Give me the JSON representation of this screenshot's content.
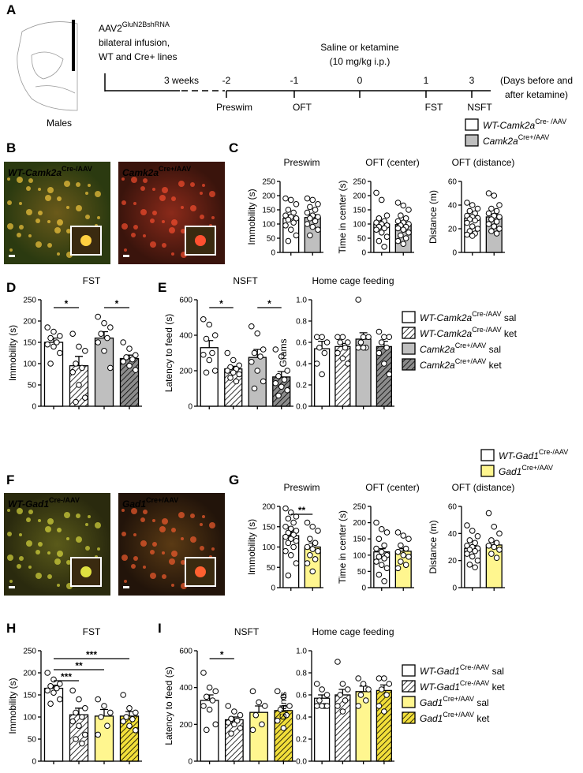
{
  "panel_labels": [
    "A",
    "B",
    "C",
    "D",
    "E",
    "F",
    "G",
    "H",
    "I"
  ],
  "timeline": {
    "vector": "AAV2",
    "vector_sup": "GluN2BshRNA",
    "lines": [
      "bilateral infusion,",
      "WT and Cre+ lines"
    ],
    "sex": "Males",
    "treatment": [
      "Saline or ketamine",
      "(10 mg/kg i.p.)"
    ],
    "gap": "3 weeks",
    "days": [
      -2,
      -1,
      0,
      1,
      3
    ],
    "tests": [
      "Preswim",
      "OFT",
      null,
      "FST",
      "NSFT"
    ],
    "units": [
      "(Days before and",
      "after ketamine)"
    ]
  },
  "images": [
    {
      "label": "WT-Camk2a",
      "sup": "Cre-/AAV"
    },
    {
      "label": "Camk2a",
      "sup": "Cre+/AAV"
    },
    {
      "label": "WT-Gad1",
      "sup": "Cre-/AAV"
    },
    {
      "label": "Gad1",
      "sup": "Cre+/AAV"
    }
  ],
  "legends": [
    {
      "entries": [
        {
          "name": "WT-Camk2a",
          "sup": "Cre- /AAV",
          "suffix": null,
          "color": "#ffffff",
          "hatch": false
        },
        {
          "name": "Camk2a",
          "sup": "Cre+/AAV",
          "suffix": null,
          "color": "#bfbfbf",
          "hatch": false
        }
      ]
    },
    {
      "entries": [
        {
          "name": "WT-Camk2a",
          "sup": "Cre-/AAV",
          "suffix": "sal",
          "color": "#ffffff",
          "hatch": false
        },
        {
          "name": "WT-Camk2a",
          "sup": "Cre-/AAV",
          "suffix": "ket",
          "color": "#ffffff",
          "hatch": true
        },
        {
          "name": "Camk2a",
          "sup": "Cre+/AAV",
          "suffix": "sal",
          "color": "#bfbfbf",
          "hatch": false
        },
        {
          "name": "Camk2a",
          "sup": "Cre+/AAV",
          "suffix": "ket",
          "color": "#8c8c8c",
          "hatch": true
        }
      ]
    },
    {
      "entries": [
        {
          "name": "WT-Gad1",
          "sup": "Cre-/AAV",
          "suffix": null,
          "color": "#ffffff",
          "hatch": false
        },
        {
          "name": "Gad1",
          "sup": "Cre+/AAV",
          "suffix": null,
          "color": "#fff68f",
          "hatch": false
        }
      ]
    },
    {
      "entries": [
        {
          "name": "WT-Gad1",
          "sup": "Cre-/AAV",
          "suffix": "sal",
          "color": "#ffffff",
          "hatch": false
        },
        {
          "name": "WT-Gad1",
          "sup": "Cre-/AAV",
          "suffix": "ket",
          "color": "#ffffff",
          "hatch": true
        },
        {
          "name": "Gad1",
          "sup": "Cre+/AAV",
          "suffix": "sal",
          "color": "#fff68f",
          "hatch": false
        },
        {
          "name": "Gad1",
          "sup": "Cre+/AAV",
          "suffix": "ket",
          "color": "#f2df3a",
          "hatch": true
        }
      ]
    }
  ],
  "chart_data": [
    {
      "type": "bar",
      "title": "Preswim",
      "ylabel": "Immobility (s)",
      "ylim": [
        0,
        250
      ],
      "yticks": [
        0,
        50,
        100,
        150,
        200,
        250
      ],
      "values": [
        120,
        123
      ],
      "errors": [
        12,
        10
      ],
      "colors": [
        "#ffffff",
        "#bfbfbf"
      ],
      "hatch": [
        false,
        false
      ],
      "points": [
        [
          190,
          185,
          170,
          150,
          140,
          130,
          125,
          120,
          115,
          105,
          95,
          80,
          60,
          40
        ],
        [
          190,
          185,
          170,
          160,
          150,
          140,
          130,
          125,
          120,
          110,
          100,
          90,
          80,
          60
        ]
      ],
      "significance": []
    },
    {
      "type": "bar",
      "title": "OFT (center)",
      "ylabel": "Time in center (s)",
      "ylim": [
        0,
        250
      ],
      "yticks": [
        0,
        50,
        100,
        150,
        200,
        250
      ],
      "values": [
        100,
        98
      ],
      "errors": [
        12,
        8
      ],
      "colors": [
        "#ffffff",
        "#bfbfbf"
      ],
      "hatch": [
        false,
        false
      ],
      "points": [
        [
          210,
          185,
          130,
          120,
          110,
          105,
          100,
          95,
          90,
          85,
          80,
          70,
          55,
          40,
          20
        ],
        [
          175,
          165,
          150,
          130,
          120,
          110,
          105,
          100,
          95,
          90,
          85,
          80,
          70,
          60,
          50,
          40,
          30
        ]
      ],
      "significance": []
    },
    {
      "type": "bar",
      "title": "OFT (distance)",
      "ylabel": "Distance (m)",
      "ylim": [
        0,
        60
      ],
      "yticks": [
        0,
        20,
        40,
        60
      ],
      "values": [
        29,
        30
      ],
      "errors": [
        2.5,
        2.5
      ],
      "colors": [
        "#ffffff",
        "#bfbfbf"
      ],
      "hatch": [
        false,
        false
      ],
      "points": [
        [
          42,
          40,
          37,
          35,
          33,
          31,
          30,
          29,
          28,
          27,
          25,
          22,
          20,
          18,
          16,
          15,
          14
        ],
        [
          50,
          48,
          40,
          37,
          35,
          33,
          31,
          30,
          28,
          26,
          24,
          22,
          20,
          18,
          16
        ]
      ],
      "significance": []
    },
    {
      "type": "bar",
      "title": "FST",
      "ylabel": "Immobility (s)",
      "ylim": [
        0,
        250
      ],
      "yticks": [
        0,
        50,
        100,
        150,
        200,
        250
      ],
      "values": [
        150,
        95,
        160,
        112
      ],
      "errors": [
        10,
        22,
        15,
        8
      ],
      "colors": [
        "#ffffff",
        "#ffffff",
        "#bfbfbf",
        "#8c8c8c"
      ],
      "hatch": [
        false,
        true,
        false,
        true
      ],
      "points": [
        [
          185,
          175,
          165,
          160,
          150,
          145,
          140,
          125,
          100
        ],
        [
          170,
          140,
          130,
          100,
          90,
          80,
          50,
          20,
          10
        ],
        [
          210,
          195,
          185,
          170,
          160,
          150,
          130,
          90
        ],
        [
          150,
          135,
          120,
          115,
          110,
          105,
          95,
          85
        ]
      ],
      "significance": [
        {
          "from": 0,
          "to": 1,
          "label": "*"
        },
        {
          "from": 2,
          "to": 3,
          "label": "*"
        }
      ]
    },
    {
      "type": "bar",
      "title": "NSFT",
      "ylabel": "Latency to feed (s)",
      "ylim": [
        0,
        600
      ],
      "yticks": [
        0,
        200,
        400,
        600
      ],
      "values": [
        330,
        210,
        275,
        165
      ],
      "errors": [
        40,
        15,
        45,
        30
      ],
      "colors": [
        "#ffffff",
        "#ffffff",
        "#bfbfbf",
        "#8c8c8c"
      ],
      "hatch": [
        false,
        true,
        false,
        true
      ],
      "points": [
        [
          490,
          460,
          400,
          380,
          300,
          290,
          260,
          200,
          190
        ],
        [
          300,
          260,
          230,
          220,
          210,
          200,
          190,
          180,
          160,
          140
        ],
        [
          450,
          410,
          320,
          300,
          280,
          250,
          200,
          140,
          100
        ],
        [
          320,
          280,
          200,
          170,
          150,
          130,
          110,
          90,
          60
        ]
      ],
      "significance": [
        {
          "from": 0,
          "to": 1,
          "label": "*"
        },
        {
          "from": 2,
          "to": 3,
          "label": "*"
        }
      ]
    },
    {
      "type": "bar",
      "title": "Home cage feeding",
      "ylabel": "Grams",
      "ylim": [
        0,
        1
      ],
      "yticks": [
        {
          "value": 0,
          "label": "0.0"
        },
        0.2,
        0.4,
        0.6,
        0.8,
        {
          "value": 1,
          "label": "1.0"
        }
      ],
      "values": [
        0.54,
        0.56,
        0.63,
        0.56
      ],
      "errors": [
        0.07,
        0.03,
        0.06,
        0.05
      ],
      "colors": [
        "#ffffff",
        "#ffffff",
        "#bfbfbf",
        "#8c8c8c"
      ],
      "hatch": [
        false,
        true,
        false,
        true
      ],
      "points": [
        [
          0.65,
          0.65,
          0.6,
          0.55,
          0.5,
          0.4,
          0.3
        ],
        [
          0.65,
          0.65,
          0.6,
          0.6,
          0.55,
          0.5,
          0.45,
          0.4
        ],
        [
          1,
          0.65,
          0.65,
          0.6,
          0.55,
          0.55,
          0.55
        ],
        [
          0.7,
          0.65,
          0.65,
          0.6,
          0.55,
          0.5,
          0.4,
          0.3
        ]
      ],
      "significance": []
    },
    {
      "type": "bar",
      "title": "Preswim",
      "ylabel": "Immobility (s)",
      "ylim": [
        0,
        200
      ],
      "yticks": [
        0,
        50,
        100,
        150,
        200
      ],
      "values": [
        128,
        100
      ],
      "errors": [
        9,
        10
      ],
      "colors": [
        "#ffffff",
        "#fff68f"
      ],
      "hatch": [
        false,
        false
      ],
      "points": [
        [
          195,
          185,
          175,
          170,
          160,
          150,
          145,
          140,
          135,
          130,
          125,
          120,
          115,
          110,
          100,
          90,
          80,
          60,
          30
        ],
        [
          160,
          150,
          140,
          120,
          110,
          100,
          95,
          90,
          80,
          70,
          60,
          40
        ]
      ],
      "significance": [
        {
          "from": 0,
          "to": 1,
          "label": "**"
        }
      ]
    },
    {
      "type": "bar",
      "title": "OFT (center)",
      "ylabel": "Time in center (s)",
      "ylim": [
        0,
        250
      ],
      "yticks": [
        0,
        50,
        100,
        150,
        200,
        250
      ],
      "values": [
        110,
        112
      ],
      "errors": [
        10,
        8
      ],
      "colors": [
        "#ffffff",
        "#fff68f"
      ],
      "hatch": [
        false,
        false
      ],
      "points": [
        [
          200,
          180,
          170,
          150,
          130,
          120,
          110,
          100,
          95,
          90,
          80,
          70,
          60,
          40,
          20
        ],
        [
          170,
          160,
          150,
          130,
          120,
          110,
          100,
          95,
          80,
          70,
          60
        ]
      ],
      "significance": []
    },
    {
      "type": "bar",
      "title": "OFT (distance)",
      "ylabel": "Distance (m)",
      "ylim": [
        0,
        60
      ],
      "yticks": [
        0,
        20,
        40,
        60
      ],
      "values": [
        29,
        31.5
      ],
      "errors": [
        2,
        2.5
      ],
      "colors": [
        "#ffffff",
        "#fff68f"
      ],
      "hatch": [
        false,
        false
      ],
      "points": [
        [
          46,
          42,
          38,
          35,
          33,
          31,
          30,
          29,
          28,
          27,
          25,
          23,
          20,
          17,
          15
        ],
        [
          55,
          45,
          40,
          35,
          33,
          31,
          30,
          28,
          25,
          22
        ]
      ],
      "significance": []
    },
    {
      "type": "bar",
      "title": "FST",
      "ylabel": "Immobility (s)",
      "ylim": [
        0,
        250
      ],
      "yticks": [
        0,
        50,
        100,
        150,
        200,
        250
      ],
      "values": [
        165,
        105,
        102,
        102
      ],
      "errors": [
        7,
        15,
        15,
        10
      ],
      "colors": [
        "#ffffff",
        "#ffffff",
        "#fff68f",
        "#f2df3a"
      ],
      "hatch": [
        false,
        true,
        false,
        true
      ],
      "points": [
        [
          200,
          185,
          175,
          170,
          165,
          160,
          155,
          140,
          130
        ],
        [
          160,
          140,
          120,
          110,
          100,
          90,
          80,
          60,
          50,
          40
        ],
        [
          140,
          125,
          110,
          100,
          80,
          60
        ],
        [
          150,
          120,
          110,
          100,
          95,
          90,
          80,
          70
        ]
      ],
      "significance": [
        {
          "from": 0,
          "to": 3,
          "label": "***"
        },
        {
          "from": 0,
          "to": 2,
          "label": "**"
        },
        {
          "from": 0,
          "to": 1,
          "label": "***"
        }
      ]
    },
    {
      "type": "bar",
      "title": "NSFT",
      "ylabel": "Latency to feed (s)",
      "ylim": [
        0,
        600
      ],
      "yticks": [
        0,
        200,
        400,
        600
      ],
      "values": [
        330,
        225,
        265,
        275
      ],
      "errors": [
        30,
        15,
        35,
        25
      ],
      "colors": [
        "#ffffff",
        "#ffffff",
        "#fff68f",
        "#f2df3a"
      ],
      "hatch": [
        false,
        true,
        false,
        true
      ],
      "points": [
        [
          480,
          400,
          380,
          350,
          330,
          300,
          280,
          200,
          170
        ],
        [
          300,
          270,
          250,
          230,
          220,
          210,
          200,
          180,
          150
        ],
        [
          380,
          320,
          300,
          250,
          200,
          170
        ],
        [
          380,
          350,
          300,
          280,
          250,
          220,
          180
        ]
      ],
      "significance": [
        {
          "from": 0,
          "to": 1,
          "label": "*"
        }
      ]
    },
    {
      "type": "bar",
      "title": "Home cage feeding",
      "ylabel": "Grams",
      "ylim": [
        0,
        1
      ],
      "yticks": [
        {
          "value": 0,
          "label": "0.0"
        },
        0.2,
        0.4,
        0.6,
        0.8,
        {
          "value": 1,
          "label": "1.0"
        }
      ],
      "values": [
        0.57,
        0.6,
        0.63,
        0.64
      ],
      "errors": [
        0.03,
        0.05,
        0.05,
        0.05
      ],
      "colors": [
        "#ffffff",
        "#ffffff",
        "#fff68f",
        "#f2df3a"
      ],
      "hatch": [
        false,
        true,
        false,
        true
      ],
      "points": [
        [
          0.7,
          0.65,
          0.6,
          0.55,
          0.5,
          0.5,
          0.5,
          0.5
        ],
        [
          0.9,
          0.7,
          0.65,
          0.6,
          0.55,
          0.5,
          0.45
        ],
        [
          0.75,
          0.7,
          0.65,
          0.6,
          0.55,
          0.5
        ],
        [
          0.75,
          0.75,
          0.7,
          0.65,
          0.6,
          0.5,
          0.45
        ]
      ],
      "significance": []
    }
  ]
}
